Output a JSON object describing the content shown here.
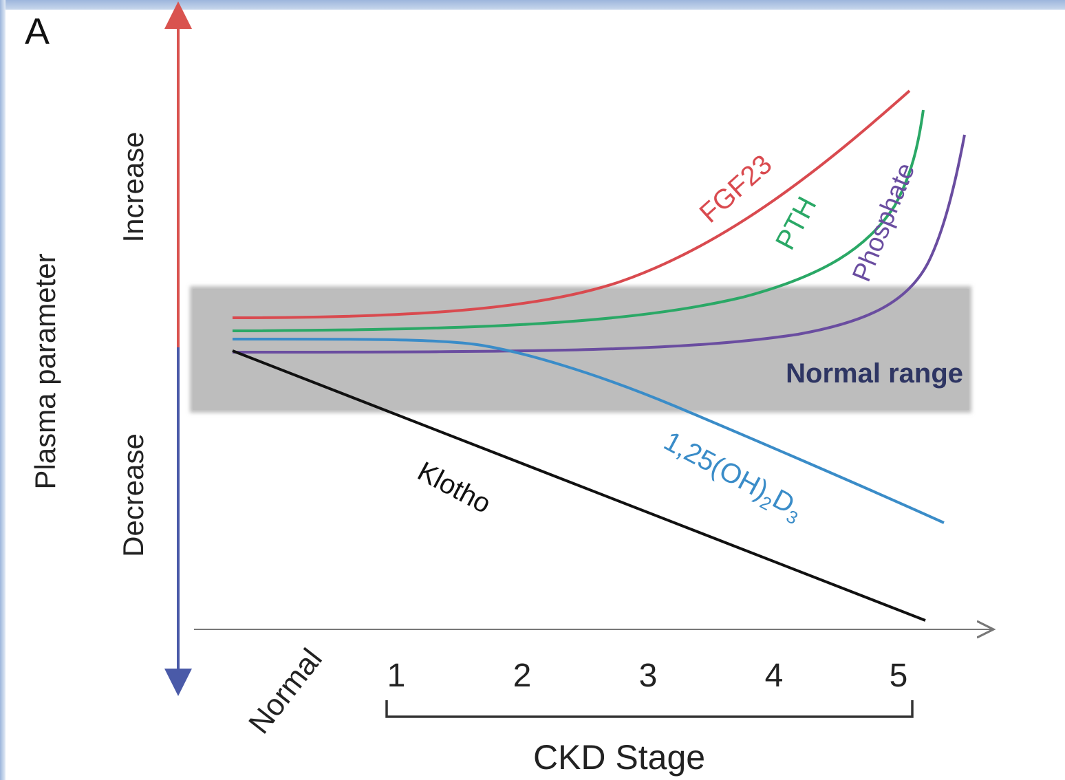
{
  "panel_letter": "A",
  "y_axis": {
    "title": "Plasma parameter",
    "up_label": "Increase",
    "down_label": "Decrease"
  },
  "x_axis": {
    "start_label": "Normal",
    "ticks": [
      "1",
      "2",
      "3",
      "4",
      "5"
    ],
    "group_label": "CKD Stage"
  },
  "band": {
    "label": "Normal range",
    "color": "#bdbdbd"
  },
  "curves": [
    {
      "name": "FGF23",
      "color": "#d94a4f"
    },
    {
      "name": "PTH",
      "color": "#2aa866"
    },
    {
      "name": "Phosphate",
      "color": "#6a4da0"
    },
    {
      "name": "1,25(OH)",
      "sub1": "2",
      "mid": "D",
      "sub2": "3",
      "color": "#3a8cc8"
    },
    {
      "name": "Klotho",
      "color": "#111111"
    }
  ],
  "colors": {
    "increase_arrow": "#d9534f",
    "decrease_arrow": "#4a5aa8",
    "axis": "#777777",
    "band_text": "#2e3563"
  }
}
